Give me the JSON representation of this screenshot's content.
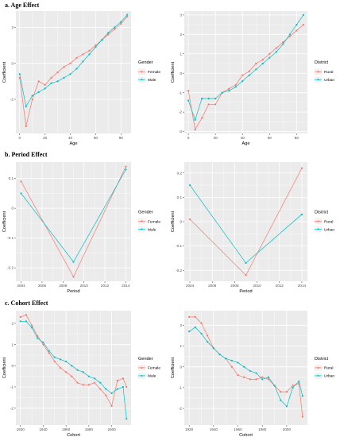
{
  "sections": [
    {
      "label": "a.   Age Effect"
    },
    {
      "label": "b.   Period Effect"
    },
    {
      "label": "c.   Cohort Effect"
    }
  ],
  "colors": {
    "series_1": "#f8766d",
    "series_2": "#00bfc4",
    "panel_bg": "#ebebeb",
    "grid": "#ffffff"
  },
  "chart_data": [
    {
      "type": "line",
      "section": "a",
      "xlabel": "Age",
      "ylabel": "Coefficient",
      "legend_title": "Gender",
      "legend_position": "right",
      "grid": true,
      "xlim": [
        -3,
        88
      ],
      "ylim": [
        -3.9,
        2.9
      ],
      "xticks": [
        0,
        20,
        40,
        60,
        80
      ],
      "yticks": [
        -2,
        0,
        2
      ],
      "x": [
        0,
        5,
        10,
        15,
        20,
        25,
        30,
        35,
        40,
        45,
        50,
        55,
        60,
        65,
        70,
        75,
        80,
        85
      ],
      "series": [
        {
          "name": "Female",
          "values": [
            -0.8,
            -3.5,
            -2.0,
            -1.0,
            -1.2,
            -0.8,
            -0.5,
            -0.2,
            0.0,
            0.3,
            0.5,
            0.7,
            1.0,
            1.3,
            1.6,
            1.9,
            2.2,
            2.6
          ]
        },
        {
          "name": "Male",
          "values": [
            -0.6,
            -2.4,
            -1.8,
            -1.6,
            -1.4,
            -1.1,
            -1.0,
            -0.8,
            -0.6,
            -0.3,
            0.1,
            0.5,
            0.9,
            1.3,
            1.7,
            2.0,
            2.3,
            2.7
          ]
        }
      ]
    },
    {
      "type": "line",
      "section": "a",
      "xlabel": "Age",
      "ylabel": "Coefficient",
      "legend_title": "District",
      "legend_position": "right",
      "grid": true,
      "xlim": [
        -3,
        88
      ],
      "ylim": [
        -3.1,
        3.2
      ],
      "xticks": [
        0,
        20,
        40,
        60,
        80
      ],
      "yticks": [
        -3,
        -2,
        -1,
        0,
        1,
        2,
        3
      ],
      "x": [
        0,
        5,
        10,
        15,
        20,
        25,
        30,
        35,
        40,
        45,
        50,
        55,
        60,
        65,
        70,
        75,
        80,
        85
      ],
      "series": [
        {
          "name": "Rural",
          "values": [
            -0.9,
            -2.9,
            -2.3,
            -1.6,
            -1.6,
            -1.0,
            -0.8,
            -0.6,
            -0.1,
            0.1,
            0.5,
            0.7,
            1.0,
            1.3,
            1.6,
            1.9,
            2.2,
            2.5
          ]
        },
        {
          "name": "Urban",
          "values": [
            -1.4,
            -2.4,
            -1.3,
            -1.3,
            -1.3,
            -1.0,
            -0.9,
            -0.7,
            -0.4,
            -0.1,
            0.2,
            0.5,
            0.8,
            1.1,
            1.5,
            2.0,
            2.5,
            3.0
          ]
        }
      ]
    },
    {
      "type": "line",
      "section": "b",
      "xlabel": "Period",
      "ylabel": "Coefficient",
      "legend_title": "Gender",
      "legend_position": "right",
      "grid": true,
      "xlim": [
        2003.5,
        2014.5
      ],
      "ylim": [
        -0.245,
        0.155
      ],
      "xticks": [
        2004,
        2006,
        2008,
        2010,
        2012,
        2014
      ],
      "yticks": [
        -0.2,
        -0.1,
        0.0,
        0.1
      ],
      "x": [
        2004,
        2009,
        2014
      ],
      "series": [
        {
          "name": "Female",
          "values": [
            0.09,
            -0.23,
            0.14
          ]
        },
        {
          "name": "Male",
          "values": [
            0.05,
            -0.18,
            0.13
          ]
        }
      ]
    },
    {
      "type": "line",
      "section": "b",
      "xlabel": "Period",
      "ylabel": "Coefficient",
      "legend_title": "District",
      "legend_position": "right",
      "grid": true,
      "xlim": [
        2003.5,
        2014.5
      ],
      "ylim": [
        -0.245,
        0.245
      ],
      "xticks": [
        2004,
        2006,
        2008,
        2010,
        2012,
        2014
      ],
      "yticks": [
        -0.2,
        -0.1,
        0.0,
        0.1,
        0.2
      ],
      "x": [
        2004,
        2009,
        2014
      ],
      "series": [
        {
          "name": "Rural",
          "values": [
            0.01,
            -0.22,
            0.22
          ]
        },
        {
          "name": "Urban",
          "values": [
            0.15,
            -0.17,
            0.03
          ]
        }
      ]
    },
    {
      "type": "line",
      "section": "c",
      "xlabel": "Cohort",
      "ylabel": "Coefficient",
      "legend_title": "Gender",
      "legend_position": "right",
      "grid": true,
      "xlim": [
        1916,
        2017
      ],
      "ylim": [
        -2.8,
        2.6
      ],
      "xticks": [
        1920,
        1940,
        1960,
        1980,
        2000
      ],
      "yticks": [
        -2,
        -1,
        0,
        1,
        2
      ],
      "x": [
        1920,
        1925,
        1930,
        1935,
        1940,
        1945,
        1950,
        1955,
        1960,
        1965,
        1970,
        1975,
        1980,
        1985,
        1990,
        1995,
        2000,
        2005,
        2010,
        2013
      ],
      "series": [
        {
          "name": "Female",
          "values": [
            2.3,
            2.4,
            1.9,
            1.4,
            1.0,
            0.6,
            0.2,
            -0.1,
            -0.3,
            -0.5,
            -0.8,
            -0.9,
            -0.9,
            -0.8,
            -1.1,
            -1.4,
            -1.9,
            -0.7,
            -0.6,
            -1.0
          ]
        },
        {
          "name": "Male",
          "values": [
            2.1,
            2.1,
            1.8,
            1.3,
            1.1,
            0.7,
            0.4,
            0.3,
            0.2,
            0.0,
            -0.2,
            -0.3,
            -0.5,
            -0.6,
            -0.8,
            -1.1,
            -1.3,
            -1.1,
            -1.0,
            -2.5
          ]
        }
      ]
    },
    {
      "type": "line",
      "section": "c",
      "xlabel": "Cohort",
      "ylabel": "Coefficient",
      "legend_title": "District",
      "legend_position": "right",
      "grid": true,
      "xlim": [
        1916,
        2017
      ],
      "ylim": [
        -2.8,
        2.7
      ],
      "xticks": [
        1920,
        1940,
        1960,
        1980,
        2000
      ],
      "yticks": [
        -2,
        -1,
        0,
        1,
        2
      ],
      "x": [
        1920,
        1925,
        1930,
        1935,
        1940,
        1945,
        1950,
        1955,
        1960,
        1965,
        1970,
        1975,
        1980,
        1985,
        1990,
        1995,
        2000,
        2005,
        2010,
        2013
      ],
      "series": [
        {
          "name": "Rural",
          "values": [
            2.4,
            2.4,
            2.1,
            1.5,
            0.9,
            0.6,
            0.4,
            0.0,
            -0.4,
            -0.5,
            -0.6,
            -0.6,
            -0.5,
            -0.6,
            -0.9,
            -1.2,
            -1.2,
            -0.9,
            -0.8,
            -2.4
          ]
        },
        {
          "name": "Urban",
          "values": [
            1.7,
            1.9,
            1.6,
            1.2,
            0.9,
            0.6,
            0.4,
            0.3,
            0.2,
            0.0,
            -0.2,
            -0.3,
            -0.6,
            -0.5,
            -0.9,
            -1.6,
            -1.9,
            -1.0,
            -0.7,
            -1.4
          ]
        }
      ]
    }
  ]
}
